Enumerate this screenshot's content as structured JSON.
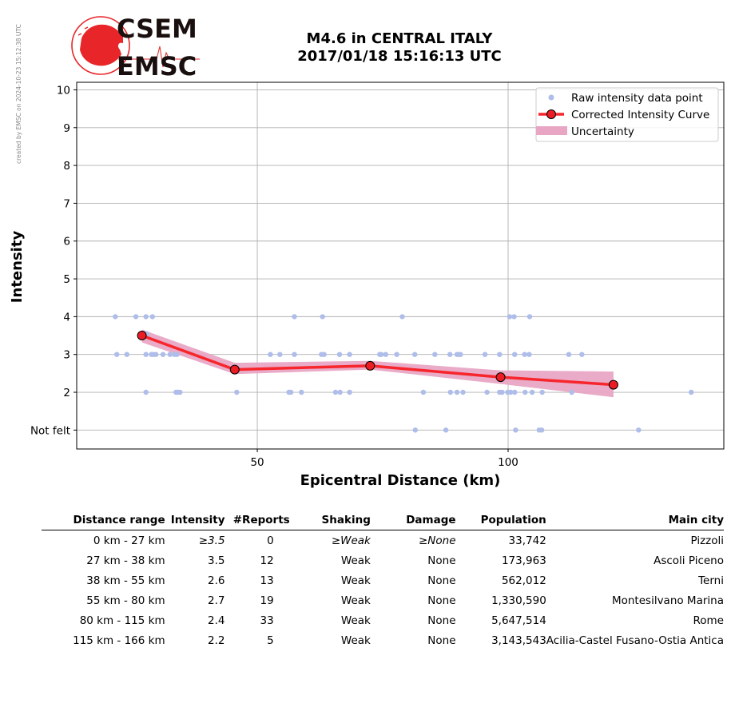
{
  "credit": "created by EMSC on 2024-10-23 15:12:38 UTC",
  "logo": {
    "line1": "CSEM",
    "line2": "EMSC"
  },
  "title_line1": "M4.6 in CENTRAL ITALY",
  "title_line2": "2017/01/18 15:16:13 UTC",
  "chart_data": {
    "type": "scatter",
    "xlabel": "Epicentral Distance (km)",
    "ylabel": "Intensity",
    "xlim": [
      14,
      143
    ],
    "ylim": [
      0.5,
      10.2
    ],
    "x_ticks": [
      50,
      100
    ],
    "y_ticks": [
      1,
      2,
      3,
      4,
      5,
      6,
      7,
      8,
      9,
      10
    ],
    "y_tick_labels": [
      "Not felt",
      "2",
      "3",
      "4",
      "5",
      "6",
      "7",
      "8",
      "9",
      "10"
    ],
    "grid": true,
    "legend": "top-right",
    "colors": {
      "raw": "#aebde9",
      "curve": "#f7262c",
      "marker": "#ec1c24",
      "uncertainty": "#e8a6c4"
    },
    "series": [
      {
        "name": "Raw intensity data point",
        "kind": "scatter",
        "points": [
          [
            21.7,
            4
          ],
          [
            25.8,
            4
          ],
          [
            27.8,
            4
          ],
          [
            29.1,
            4
          ],
          [
            57.4,
            4
          ],
          [
            63.0,
            4
          ],
          [
            78.9,
            4
          ],
          [
            100.3,
            4
          ],
          [
            101.2,
            4
          ],
          [
            104.3,
            4
          ],
          [
            22.0,
            3
          ],
          [
            24.0,
            3
          ],
          [
            28.0,
            3.55
          ],
          [
            27.8,
            3
          ],
          [
            28.9,
            3
          ],
          [
            29.3,
            3
          ],
          [
            29.8,
            3
          ],
          [
            31.2,
            3
          ],
          [
            32.6,
            3
          ],
          [
            33.5,
            3
          ],
          [
            34.0,
            3
          ],
          [
            52.6,
            3
          ],
          [
            54.5,
            3
          ],
          [
            57.4,
            3
          ],
          [
            62.8,
            3
          ],
          [
            63.3,
            3
          ],
          [
            66.4,
            3
          ],
          [
            68.4,
            3
          ],
          [
            74.4,
            3
          ],
          [
            74.7,
            3
          ],
          [
            75.6,
            3
          ],
          [
            77.8,
            3
          ],
          [
            81.4,
            3
          ],
          [
            85.4,
            3
          ],
          [
            88.4,
            3
          ],
          [
            89.8,
            3
          ],
          [
            90.2,
            3
          ],
          [
            90.5,
            3
          ],
          [
            95.4,
            3
          ],
          [
            98.3,
            3
          ],
          [
            101.3,
            3
          ],
          [
            103.3,
            3
          ],
          [
            104.2,
            3
          ],
          [
            112.1,
            3
          ],
          [
            114.7,
            3
          ],
          [
            27.8,
            2
          ],
          [
            33.8,
            2
          ],
          [
            34.2,
            2
          ],
          [
            34.6,
            2
          ],
          [
            45.9,
            2
          ],
          [
            56.3,
            2
          ],
          [
            56.7,
            2
          ],
          [
            58.8,
            2
          ],
          [
            65.6,
            2
          ],
          [
            66.5,
            2
          ],
          [
            68.4,
            2
          ],
          [
            83.1,
            2
          ],
          [
            88.5,
            2
          ],
          [
            89.8,
            2
          ],
          [
            91.0,
            2
          ],
          [
            95.8,
            2
          ],
          [
            98.3,
            2
          ],
          [
            98.8,
            2
          ],
          [
            99.9,
            2
          ],
          [
            100.5,
            2
          ],
          [
            101.3,
            2
          ],
          [
            103.4,
            2
          ],
          [
            104.8,
            2
          ],
          [
            106.8,
            2
          ],
          [
            112.7,
            2
          ],
          [
            136.5,
            2
          ],
          [
            81.5,
            1
          ],
          [
            87.6,
            1
          ],
          [
            101.5,
            1
          ],
          [
            106.2,
            1
          ],
          [
            106.7,
            1
          ],
          [
            126.0,
            1
          ]
        ]
      },
      {
        "name": "Corrected Intensity Curve",
        "kind": "line",
        "x": [
          27.0,
          45.5,
          72.5,
          98.5,
          121.0
        ],
        "y": [
          3.5,
          2.6,
          2.7,
          2.4,
          2.2
        ]
      },
      {
        "name": "Uncertainty",
        "kind": "band",
        "x": [
          27.0,
          45.5,
          72.5,
          98.5,
          121.0
        ],
        "lower": [
          3.32,
          2.48,
          2.6,
          2.22,
          1.87
        ],
        "upper": [
          3.66,
          2.78,
          2.83,
          2.58,
          2.55
        ]
      }
    ]
  },
  "table": {
    "headers": [
      "Distance range",
      "Intensity",
      "#Reports",
      "Shaking",
      "Damage",
      "Population",
      "Main city"
    ],
    "rows": [
      [
        "0 km -   27 km",
        "≥3.5",
        "0",
        "≥Weak",
        "≥None",
        "33,742",
        "Pizzoli"
      ],
      [
        "27 km -   38 km",
        "3.5",
        "12",
        "Weak",
        "None",
        "173,963",
        "Ascoli Piceno"
      ],
      [
        "38 km -   55 km",
        "2.6",
        "13",
        "Weak",
        "None",
        "562,012",
        "Terni"
      ],
      [
        "55 km -   80 km",
        "2.7",
        "19",
        "Weak",
        "None",
        "1,330,590",
        "Montesilvano Marina"
      ],
      [
        "80 km -  115 km",
        "2.4",
        "33",
        "Weak",
        "None",
        "5,647,514",
        "Rome"
      ],
      [
        "115 km -  166 km",
        "2.2",
        "5",
        "Weak",
        "None",
        "3,143,543",
        "Acilia-Castel Fusano-Ostia Antica"
      ]
    ]
  }
}
